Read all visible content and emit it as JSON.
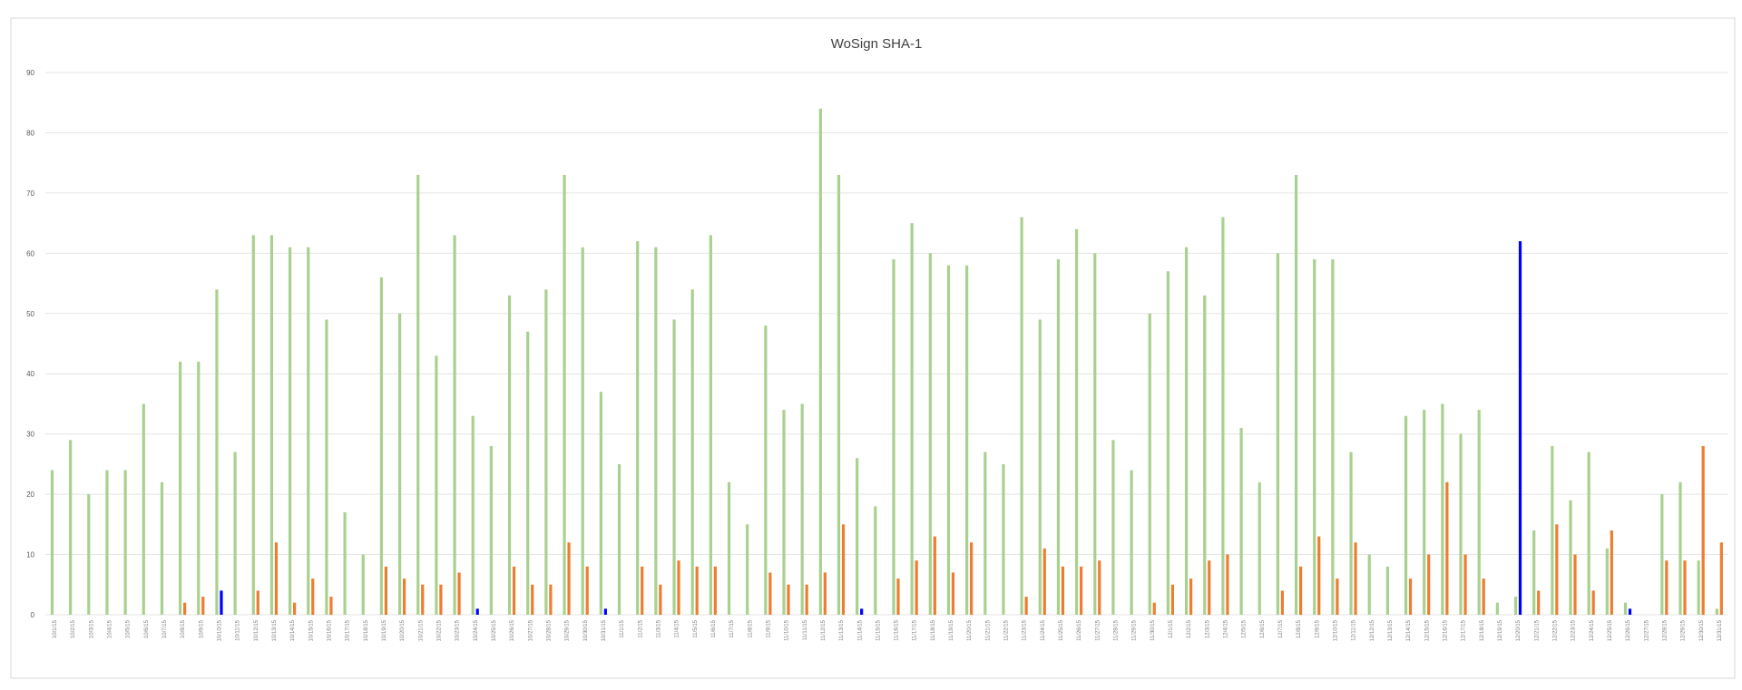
{
  "chart_data": {
    "type": "bar",
    "title": "WoSign SHA-1",
    "xlabel": "",
    "ylabel": "",
    "ylim": [
      0,
      90
    ],
    "yticks": [
      0,
      10,
      20,
      30,
      40,
      50,
      60,
      70,
      80,
      90
    ],
    "grid": true,
    "legend": "none",
    "colors": [
      "#a9d18e",
      "#ed7d31",
      "#0000ff"
    ],
    "categories": [
      "10/1/15",
      "10/2/15",
      "10/3/15",
      "10/4/15",
      "10/5/15",
      "10/6/15",
      "10/7/15",
      "10/8/15",
      "10/9/15",
      "10/10/15",
      "10/11/15",
      "10/12/15",
      "10/13/15",
      "10/14/15",
      "10/15/15",
      "10/16/15",
      "10/17/15",
      "10/18/15",
      "10/19/15",
      "10/20/15",
      "10/21/15",
      "10/22/15",
      "10/23/15",
      "10/24/15",
      "10/25/15",
      "10/26/15",
      "10/27/15",
      "10/28/15",
      "10/29/15",
      "10/30/15",
      "10/31/15",
      "11/1/15",
      "11/2/15",
      "11/3/15",
      "11/4/15",
      "11/5/15",
      "11/6/15",
      "11/7/15",
      "11/8/15",
      "11/9/15",
      "11/10/15",
      "11/11/15",
      "11/12/15",
      "11/13/15",
      "11/14/15",
      "11/15/15",
      "11/16/15",
      "11/17/15",
      "11/18/15",
      "11/19/15",
      "11/20/15",
      "11/21/15",
      "11/22/15",
      "11/23/15",
      "11/24/15",
      "11/25/15",
      "11/26/15",
      "11/27/15",
      "11/28/15",
      "11/29/15",
      "11/30/15",
      "12/1/15",
      "12/2/15",
      "12/3/15",
      "12/4/15",
      "12/5/15",
      "12/6/15",
      "12/7/15",
      "12/8/15",
      "12/9/15",
      "12/10/15",
      "12/11/15",
      "12/12/15",
      "12/13/15",
      "12/14/15",
      "12/15/15",
      "12/16/15",
      "12/17/15",
      "12/18/15",
      "12/19/15",
      "12/20/15",
      "12/21/15",
      "12/22/15",
      "12/23/15",
      "12/24/15",
      "12/25/15",
      "12/26/15",
      "12/27/15",
      "12/28/15",
      "12/29/15",
      "12/30/15",
      "12/31/15"
    ],
    "series": [
      {
        "values": [
          24,
          29,
          20,
          24,
          24,
          35,
          22,
          42,
          42,
          54,
          27,
          63,
          63,
          61,
          61,
          49,
          17,
          10,
          56,
          50,
          73,
          43,
          63,
          33,
          28,
          53,
          47,
          54,
          73,
          61,
          37,
          25,
          62,
          61,
          49,
          54,
          63,
          22,
          15,
          48,
          34,
          35,
          84,
          73,
          26,
          18,
          59,
          65,
          60,
          58,
          58,
          27,
          25,
          66,
          49,
          59,
          64,
          60,
          29,
          24,
          50,
          57,
          61,
          53,
          66,
          31,
          22,
          60,
          73,
          59,
          59,
          27,
          10,
          8,
          33,
          34,
          35,
          30,
          34,
          2,
          3,
          14,
          28,
          19,
          27,
          11,
          2,
          0,
          20,
          22,
          9,
          1
        ]
      },
      {
        "values": [
          0,
          0,
          0,
          0,
          0,
          0,
          0,
          2,
          3,
          0,
          0,
          4,
          12,
          2,
          6,
          3,
          0,
          0,
          8,
          6,
          5,
          5,
          7,
          0,
          0,
          8,
          5,
          5,
          12,
          8,
          0,
          0,
          8,
          5,
          9,
          8,
          8,
          0,
          0,
          7,
          5,
          5,
          7,
          15,
          0,
          0,
          6,
          9,
          13,
          7,
          12,
          0,
          0,
          3,
          11,
          8,
          8,
          9,
          0,
          0,
          2,
          5,
          6,
          9,
          10,
          0,
          0,
          4,
          8,
          13,
          6,
          12,
          0,
          0,
          6,
          10,
          22,
          10,
          6,
          0,
          0,
          4,
          15,
          10,
          4,
          14,
          0,
          0,
          9,
          9,
          28,
          12
        ]
      },
      {
        "values": [
          0,
          0,
          0,
          0,
          0,
          0,
          0,
          0,
          0,
          4,
          0,
          0,
          0,
          0,
          0,
          0,
          0,
          0,
          0,
          0,
          0,
          0,
          0,
          1,
          0,
          0,
          0,
          0,
          0,
          0,
          1,
          0,
          0,
          0,
          0,
          0,
          0,
          0,
          0,
          0,
          0,
          0,
          0,
          0,
          1,
          0,
          0,
          0,
          0,
          0,
          0,
          0,
          0,
          0,
          0,
          0,
          0,
          0,
          0,
          0,
          0,
          0,
          0,
          0,
          0,
          0,
          0,
          0,
          0,
          0,
          0,
          0,
          0,
          0,
          0,
          0,
          0,
          0,
          0,
          0,
          62,
          0,
          0,
          0,
          0,
          0,
          1,
          0,
          0,
          0,
          0,
          0
        ]
      }
    ]
  }
}
